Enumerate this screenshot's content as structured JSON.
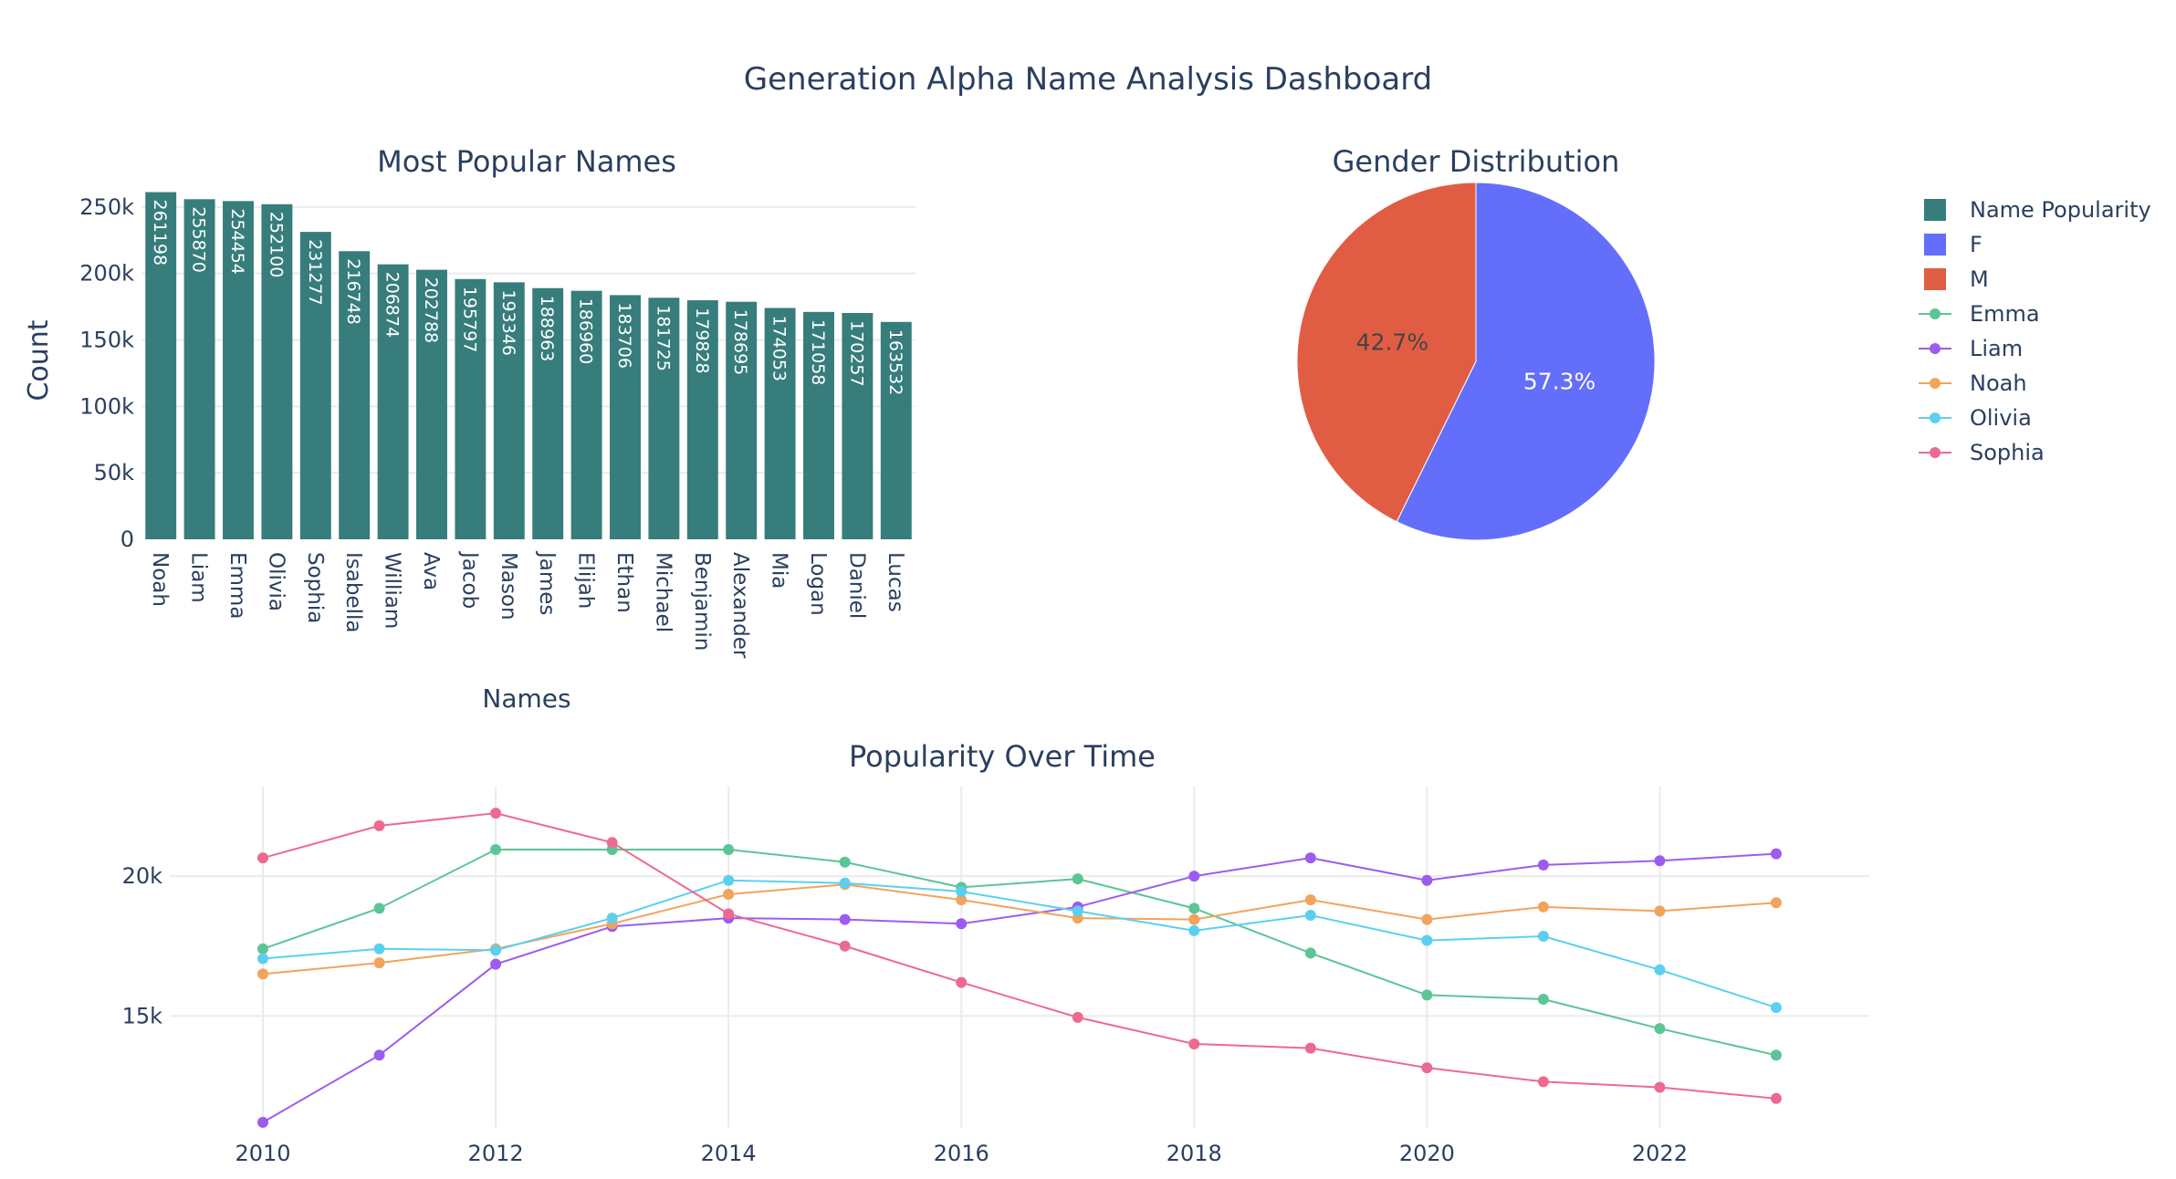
{
  "dashboard_title": "Generation Alpha Name Analysis Dashboard",
  "colors": {
    "bar": "#367d7c",
    "female": "#636efa",
    "male": "#e05d44",
    "Emma": "#5bc596",
    "Liam": "#9d5cf0",
    "Noah": "#f2a35c",
    "Olivia": "#5bd0ee",
    "Sophia": "#ec6a90",
    "title_text": "#2a3f5f",
    "grid": "#ebebeb"
  },
  "legend": {
    "items": [
      {
        "label": "Name Popularity",
        "kind": "square",
        "color": "#367d7c"
      },
      {
        "label": "F",
        "kind": "square",
        "color": "#636efa"
      },
      {
        "label": "M",
        "kind": "square",
        "color": "#e05d44"
      },
      {
        "label": "Emma",
        "kind": "line",
        "color": "#5bc596"
      },
      {
        "label": "Liam",
        "kind": "line",
        "color": "#9d5cf0"
      },
      {
        "label": "Noah",
        "kind": "line",
        "color": "#f2a35c"
      },
      {
        "label": "Olivia",
        "kind": "line",
        "color": "#5bd0ee"
      },
      {
        "label": "Sophia",
        "kind": "line",
        "color": "#ec6a90"
      }
    ]
  },
  "chart_data": [
    {
      "type": "bar",
      "title": "Most Popular Names",
      "xlabel": "Names",
      "ylabel": "Count",
      "series_name": "Name Popularity",
      "categories": [
        "Noah",
        "Liam",
        "Emma",
        "Olivia",
        "Sophia",
        "Isabella",
        "William",
        "Ava",
        "Jacob",
        "Mason",
        "James",
        "Elijah",
        "Ethan",
        "Michael",
        "Benjamin",
        "Alexander",
        "Mia",
        "Logan",
        "Daniel",
        "Lucas"
      ],
      "values": [
        261198,
        255870,
        254454,
        252100,
        231277,
        216748,
        206874,
        202788,
        195797,
        193346,
        188963,
        186960,
        183706,
        181725,
        179828,
        178695,
        174053,
        171058,
        170257,
        163532
      ],
      "value_labels": [
        "261198",
        "255870",
        "254454",
        "252100",
        "231277",
        "216748",
        "206874",
        "202788",
        "195797",
        "193346",
        "188963",
        "186960",
        "183706",
        "181725",
        "179828",
        "178695",
        "174053",
        "171058",
        "170257",
        "163532"
      ],
      "ylim": [
        0,
        265000
      ],
      "yticks": [
        0,
        50000,
        100000,
        150000,
        200000,
        250000
      ],
      "ytick_labels": [
        "0",
        "50k",
        "100k",
        "150k",
        "200k",
        "250k"
      ],
      "grid": true
    },
    {
      "type": "pie",
      "title": "Gender Distribution",
      "labels": [
        "F",
        "M"
      ],
      "values": [
        57.3,
        42.7
      ],
      "value_labels": [
        "57.3%",
        "42.7%"
      ]
    },
    {
      "type": "line",
      "title": "Popularity Over Time",
      "x": [
        2010,
        2011,
        2012,
        2013,
        2014,
        2015,
        2016,
        2017,
        2018,
        2019,
        2020,
        2021,
        2022,
        2023
      ],
      "xticks": [
        2010,
        2012,
        2014,
        2016,
        2018,
        2020,
        2022
      ],
      "xtick_labels": [
        "2010",
        "2012",
        "2014",
        "2016",
        "2018",
        "2020",
        "2022"
      ],
      "xlim": [
        2009.2,
        2023.8
      ],
      "ylim": [
        11000,
        23200
      ],
      "yticks": [
        15000,
        20000
      ],
      "ytick_labels": [
        "15k",
        "20k"
      ],
      "grid": true,
      "series": [
        {
          "name": "Emma",
          "values": [
            17400,
            18850,
            20950,
            20950,
            20950,
            20500,
            19600,
            19900,
            18850,
            17250,
            15750,
            15600,
            14550,
            13600
          ]
        },
        {
          "name": "Liam",
          "values": [
            11200,
            13600,
            16850,
            18200,
            18500,
            18450,
            18300,
            18900,
            20000,
            20650,
            19850,
            20400,
            20550,
            20800
          ]
        },
        {
          "name": "Noah",
          "values": [
            16500,
            16900,
            17400,
            18300,
            19350,
            19700,
            19150,
            18500,
            18450,
            19150,
            18450,
            18900,
            18750,
            19050
          ]
        },
        {
          "name": "Olivia",
          "values": [
            17050,
            17400,
            17350,
            18500,
            19850,
            19750,
            19450,
            18750,
            18050,
            18600,
            17700,
            17850,
            16650,
            15300
          ]
        },
        {
          "name": "Sophia",
          "values": [
            20650,
            21800,
            22250,
            21200,
            18650,
            17500,
            16200,
            14950,
            14000,
            13850,
            13150,
            12650,
            12450,
            12050
          ]
        }
      ]
    }
  ]
}
